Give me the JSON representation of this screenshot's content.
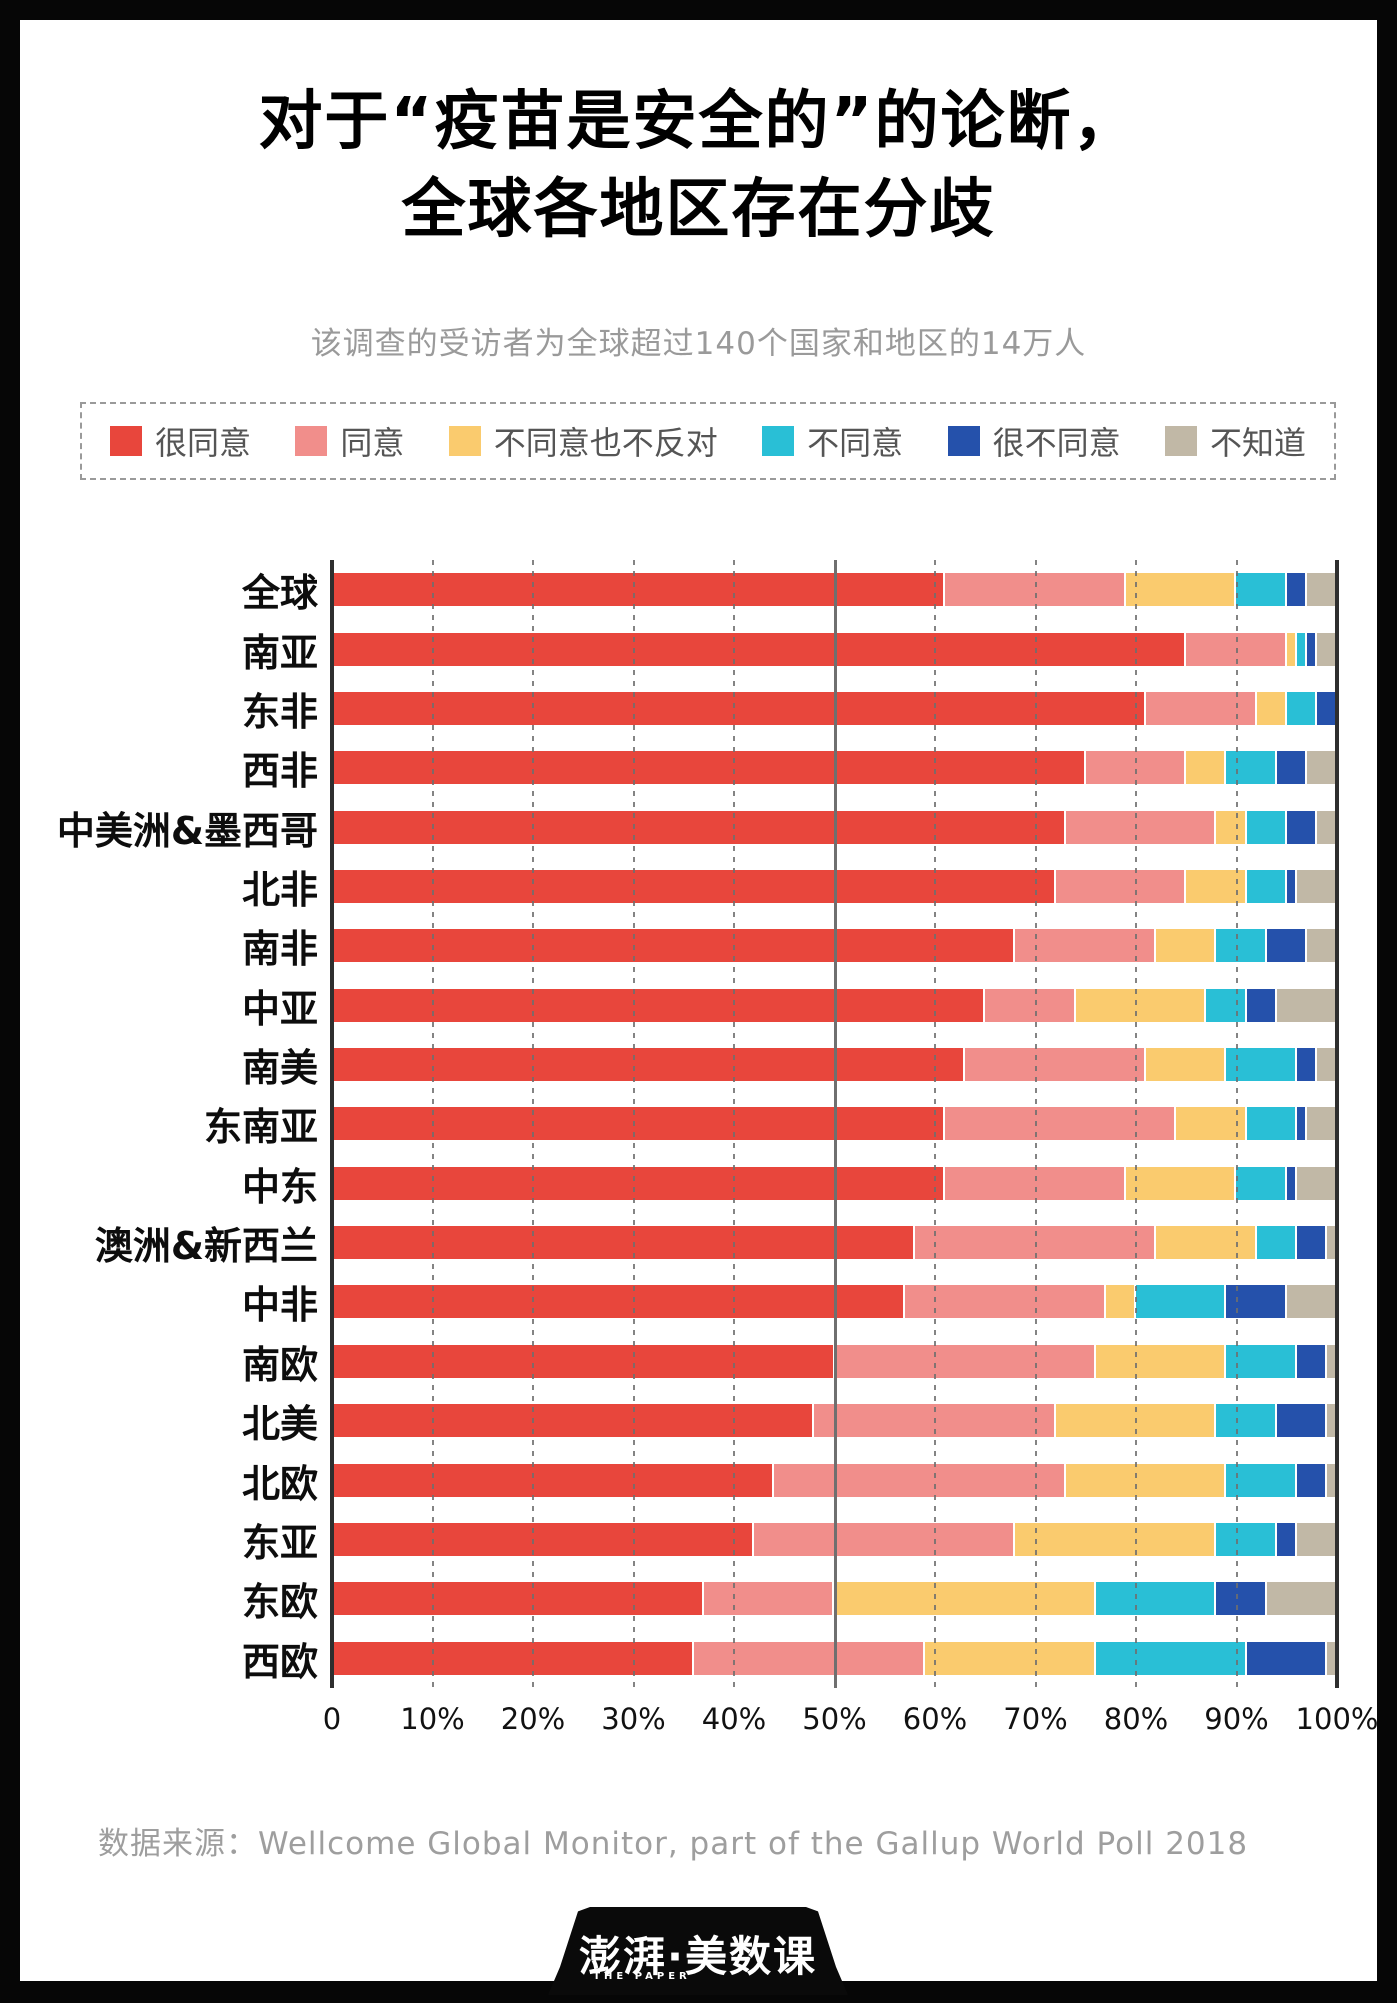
{
  "title": {
    "line1": "对于“疫苗是安全的”的论断，",
    "line2": "全球各地区存在分歧"
  },
  "subtitle": "该调查的受访者为全球超过140个国家和地区的14万人",
  "legend": [
    {
      "label": "很同意",
      "color": "#E8463C"
    },
    {
      "label": "同意",
      "color": "#F18E8B"
    },
    {
      "label": "不同意也不反对",
      "color": "#FACB6E"
    },
    {
      "label": "不同意",
      "color": "#29BFD6"
    },
    {
      "label": "很不同意",
      "color": "#2551AB"
    },
    {
      "label": "不知道",
      "color": "#C1B8A6"
    }
  ],
  "chart_data": {
    "type": "bar",
    "orientation": "horizontal",
    "stacked": true,
    "unit": "%",
    "xlim": [
      0,
      100
    ],
    "x_ticks": [
      "0",
      "10%",
      "20%",
      "30%",
      "40%",
      "50%",
      "60%",
      "70%",
      "80%",
      "90%",
      "100%"
    ],
    "grid": "dashed vertical lines every 10%, solid line at 50%, solid axis at 0% and 100%",
    "legend_position": "top",
    "series_names": [
      "很同意",
      "同意",
      "不同意也不反对",
      "不同意",
      "很不同意",
      "不知道"
    ],
    "series_colors": [
      "#E8463C",
      "#F18E8B",
      "#FACB6E",
      "#29BFD6",
      "#2551AB",
      "#C1B8A6"
    ],
    "categories": [
      "全球",
      "南亚",
      "东非",
      "西非",
      "中美洲&墨西哥",
      "北非",
      "南非",
      "中亚",
      "南美",
      "东南亚",
      "中东",
      "澳洲&新西兰",
      "中非",
      "南欧",
      "北美",
      "北欧",
      "东亚",
      "东欧",
      "西欧"
    ],
    "values": [
      [
        61,
        18,
        11,
        5,
        2,
        3
      ],
      [
        85,
        10,
        1,
        1,
        1,
        2
      ],
      [
        81,
        11,
        3,
        3,
        2,
        0
      ],
      [
        75,
        10,
        4,
        5,
        3,
        3
      ],
      [
        73,
        15,
        3,
        4,
        3,
        2
      ],
      [
        72,
        13,
        6,
        4,
        1,
        4
      ],
      [
        68,
        14,
        6,
        5,
        4,
        3
      ],
      [
        65,
        9,
        13,
        4,
        3,
        6
      ],
      [
        63,
        18,
        8,
        7,
        2,
        2
      ],
      [
        61,
        23,
        7,
        5,
        1,
        3
      ],
      [
        61,
        18,
        11,
        5,
        1,
        4
      ],
      [
        58,
        24,
        10,
        4,
        3,
        1
      ],
      [
        57,
        20,
        3,
        9,
        6,
        5
      ],
      [
        50,
        26,
        13,
        7,
        3,
        1
      ],
      [
        48,
        24,
        16,
        6,
        5,
        1
      ],
      [
        44,
        29,
        16,
        7,
        3,
        1
      ],
      [
        42,
        26,
        20,
        6,
        2,
        4
      ],
      [
        37,
        13,
        26,
        12,
        5,
        7
      ],
      [
        36,
        23,
        17,
        15,
        8,
        1
      ]
    ]
  },
  "source": "数据来源：Wellcome Global Monitor, part of the Gallup World Poll 2018",
  "logo": {
    "text": "澎湃·美数课",
    "sub": "THE PAPER"
  }
}
